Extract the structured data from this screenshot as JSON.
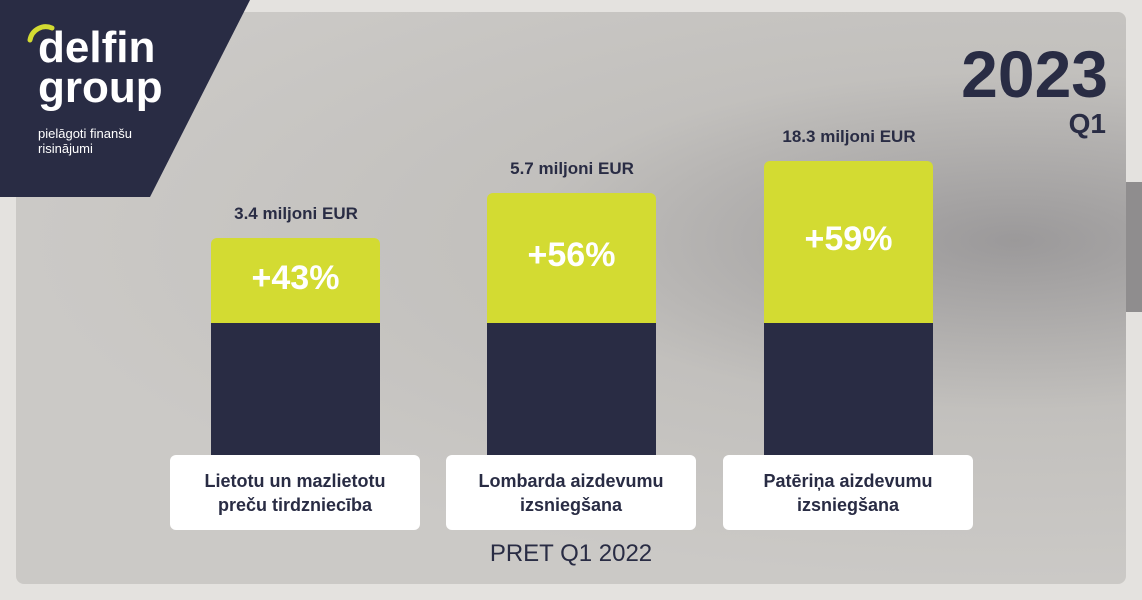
{
  "logo": {
    "name_line1": "delfin",
    "name_line2": "group",
    "tagline_line1": "pielāgoti finanšu",
    "tagline_line2": "risinājumi"
  },
  "header": {
    "year": "2023",
    "quarter": "Q1"
  },
  "items": [
    {
      "amount": "3.4 miljoni EUR",
      "growth": "+43%",
      "label_line1": "Lietotu un mazlietotu",
      "label_line2": "preču tirdzniecība"
    },
    {
      "amount": "5.7 miljoni EUR",
      "growth": "+56%",
      "label_line1": "Lombarda aizdevumu",
      "label_line2": "izsniegšana"
    },
    {
      "amount": "18.3 miljoni EUR",
      "growth": "+59%",
      "label_line1": "Patēriņa aizdevumu",
      "label_line2": "izsniegšana"
    }
  ],
  "footer": "PRET Q1 2022"
}
